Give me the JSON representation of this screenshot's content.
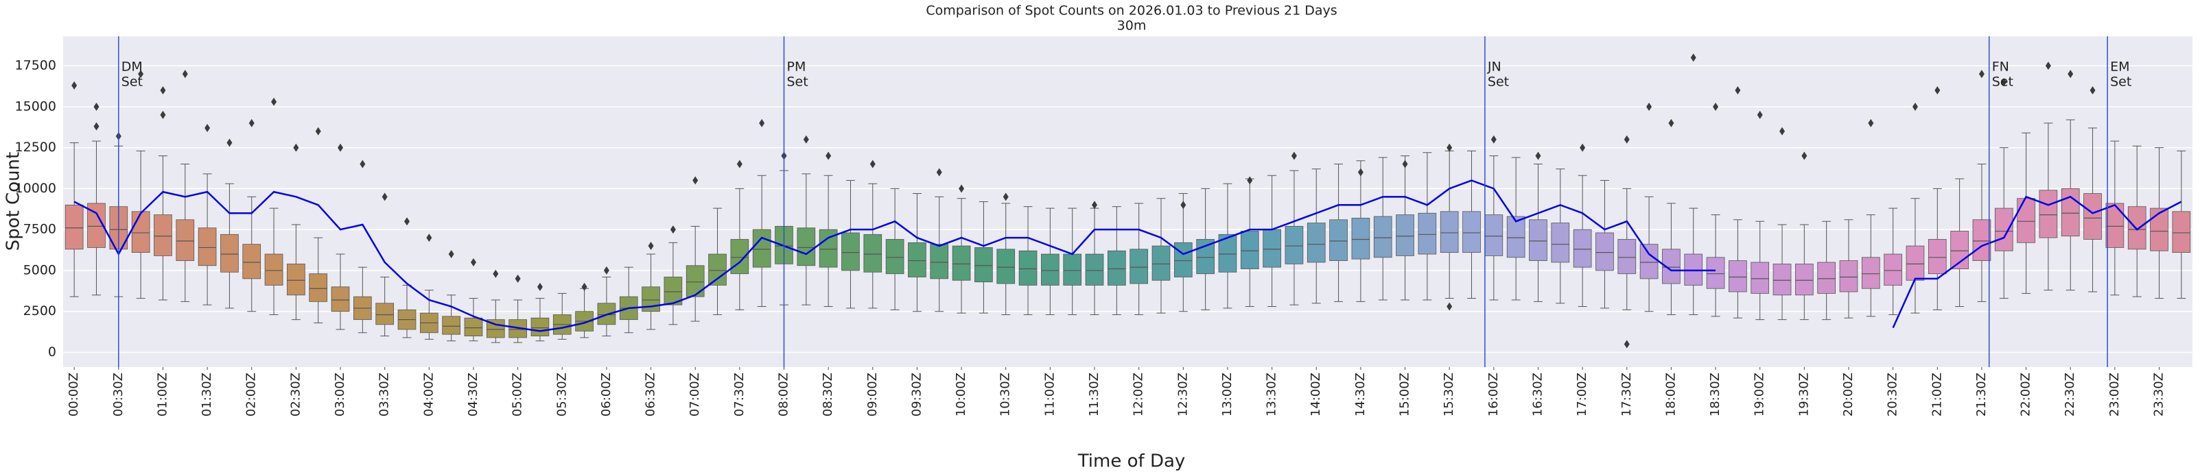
{
  "chart_data": {
    "type": "box",
    "title": "Comparison of Spot Counts on 2026.01.03 to Previous 21 Days",
    "subtitle": "30m",
    "xlabel": "Time of Day",
    "ylabel": "Spot Count",
    "xlim": [
      -7.5,
      1432.5
    ],
    "ylim": [
      -900,
      19300
    ],
    "yticks": [
      0,
      2500,
      5000,
      7500,
      10000,
      12500,
      15000,
      17500
    ],
    "xticks": [
      {
        "value": 0,
        "label": "00:00Z"
      },
      {
        "value": 30,
        "label": "00:30Z"
      },
      {
        "value": 60,
        "label": "01:00Z"
      },
      {
        "value": 90,
        "label": "01:30Z"
      },
      {
        "value": 120,
        "label": "02:00Z"
      },
      {
        "value": 150,
        "label": "02:30Z"
      },
      {
        "value": 180,
        "label": "03:00Z"
      },
      {
        "value": 210,
        "label": "03:30Z"
      },
      {
        "value": 240,
        "label": "04:00Z"
      },
      {
        "value": 270,
        "label": "04:30Z"
      },
      {
        "value": 300,
        "label": "05:00Z"
      },
      {
        "value": 330,
        "label": "05:30Z"
      },
      {
        "value": 360,
        "label": "06:00Z"
      },
      {
        "value": 390,
        "label": "06:30Z"
      },
      {
        "value": 420,
        "label": "07:00Z"
      },
      {
        "value": 450,
        "label": "07:30Z"
      },
      {
        "value": 480,
        "label": "08:00Z"
      },
      {
        "value": 510,
        "label": "08:30Z"
      },
      {
        "value": 540,
        "label": "09:00Z"
      },
      {
        "value": 570,
        "label": "09:30Z"
      },
      {
        "value": 600,
        "label": "10:00Z"
      },
      {
        "value": 630,
        "label": "10:30Z"
      },
      {
        "value": 660,
        "label": "11:00Z"
      },
      {
        "value": 690,
        "label": "11:30Z"
      },
      {
        "value": 720,
        "label": "12:00Z"
      },
      {
        "value": 750,
        "label": "12:30Z"
      },
      {
        "value": 780,
        "label": "13:00Z"
      },
      {
        "value": 810,
        "label": "13:30Z"
      },
      {
        "value": 840,
        "label": "14:00Z"
      },
      {
        "value": 870,
        "label": "14:30Z"
      },
      {
        "value": 900,
        "label": "15:00Z"
      },
      {
        "value": 930,
        "label": "15:30Z"
      },
      {
        "value": 960,
        "label": "16:00Z"
      },
      {
        "value": 990,
        "label": "16:30Z"
      },
      {
        "value": 1020,
        "label": "17:00Z"
      },
      {
        "value": 1050,
        "label": "17:30Z"
      },
      {
        "value": 1080,
        "label": "18:00Z"
      },
      {
        "value": 1110,
        "label": "18:30Z"
      },
      {
        "value": 1140,
        "label": "19:00Z"
      },
      {
        "value": 1170,
        "label": "19:30Z"
      },
      {
        "value": 1200,
        "label": "20:00Z"
      },
      {
        "value": 1230,
        "label": "20:30Z"
      },
      {
        "value": 1260,
        "label": "21:00Z"
      },
      {
        "value": 1290,
        "label": "21:30Z"
      },
      {
        "value": 1320,
        "label": "22:00Z"
      },
      {
        "value": 1350,
        "label": "22:30Z"
      },
      {
        "value": 1380,
        "label": "23:00Z"
      },
      {
        "value": 1410,
        "label": "23:30Z"
      }
    ],
    "grid": true,
    "palette": [
      "#d98a84",
      "#c2905a",
      "#9a9a48",
      "#6aa060",
      "#4e9d80",
      "#5a9eae",
      "#9aa6d6",
      "#c497d8",
      "#db8fc0",
      "#d98a98"
    ],
    "x": [
      0,
      15,
      30,
      45,
      60,
      75,
      90,
      105,
      120,
      135,
      150,
      165,
      180,
      195,
      210,
      225,
      240,
      255,
      270,
      285,
      300,
      315,
      330,
      345,
      360,
      375,
      390,
      405,
      420,
      435,
      450,
      465,
      480,
      495,
      510,
      525,
      540,
      555,
      570,
      585,
      600,
      615,
      630,
      645,
      660,
      675,
      690,
      705,
      720,
      735,
      750,
      765,
      780,
      795,
      810,
      825,
      840,
      855,
      870,
      885,
      900,
      915,
      930,
      945,
      960,
      975,
      990,
      1005,
      1020,
      1035,
      1050,
      1065,
      1080,
      1095,
      1110,
      1125,
      1140,
      1155,
      1170,
      1185,
      1200,
      1215,
      1230,
      1245,
      1260,
      1275,
      1290,
      1305,
      1320,
      1335,
      1350,
      1365,
      1380,
      1395,
      1410,
      1425
    ],
    "boxes": {
      "med": [
        7600,
        7700,
        7500,
        7300,
        7100,
        6800,
        6400,
        6000,
        5500,
        5000,
        4400,
        3900,
        3200,
        2700,
        2300,
        2000,
        1800,
        1600,
        1500,
        1400,
        1400,
        1500,
        1700,
        1900,
        2300,
        2700,
        3200,
        3700,
        4300,
        5000,
        5800,
        6300,
        6500,
        6400,
        6300,
        6100,
        6000,
        5800,
        5600,
        5500,
        5400,
        5300,
        5200,
        5100,
        5000,
        5000,
        5000,
        5100,
        5200,
        5400,
        5600,
        5800,
        6000,
        6200,
        6300,
        6500,
        6600,
        6800,
        6900,
        7000,
        7100,
        7200,
        7300,
        7300,
        7100,
        7000,
        6800,
        6600,
        6300,
        6100,
        5800,
        5500,
        5200,
        5000,
        4800,
        4600,
        4500,
        4400,
        4400,
        4500,
        4600,
        4800,
        5000,
        5400,
        5800,
        6200,
        6800,
        7400,
        8000,
        8400,
        8500,
        8200,
        7700,
        7500,
        7400,
        7300
      ],
      "q1": [
        6300,
        6400,
        6300,
        6100,
        5900,
        5600,
        5300,
        4900,
        4500,
        4100,
        3500,
        3100,
        2500,
        2000,
        1700,
        1400,
        1200,
        1100,
        1000,
        900,
        900,
        1000,
        1100,
        1300,
        1700,
        2000,
        2500,
        2900,
        3400,
        4100,
        4800,
        5200,
        5400,
        5300,
        5200,
        5000,
        4900,
        4800,
        4600,
        4500,
        4400,
        4300,
        4200,
        4100,
        4100,
        4100,
        4100,
        4100,
        4200,
        4400,
        4600,
        4800,
        4900,
        5100,
        5200,
        5400,
        5500,
        5600,
        5700,
        5800,
        5900,
        6000,
        6100,
        6100,
        5900,
        5800,
        5600,
        5500,
        5200,
        5000,
        4800,
        4500,
        4200,
        4100,
        3900,
        3700,
        3600,
        3500,
        3500,
        3600,
        3700,
        3900,
        4100,
        4400,
        4800,
        5100,
        5600,
        6200,
        6700,
        7000,
        7100,
        6900,
        6400,
        6300,
        6200,
        6100
      ],
      "q3": [
        9000,
        9100,
        8900,
        8600,
        8400,
        8100,
        7600,
        7200,
        6600,
        6000,
        5400,
        4800,
        4000,
        3400,
        3000,
        2600,
        2400,
        2200,
        2100,
        2000,
        2000,
        2100,
        2300,
        2500,
        3000,
        3400,
        4000,
        4600,
        5300,
        6000,
        6900,
        7500,
        7700,
        7600,
        7500,
        7300,
        7200,
        6900,
        6700,
        6600,
        6500,
        6400,
        6300,
        6200,
        6000,
        6000,
        6000,
        6200,
        6300,
        6500,
        6700,
        6900,
        7200,
        7400,
        7500,
        7700,
        7900,
        8100,
        8200,
        8300,
        8400,
        8500,
        8600,
        8600,
        8400,
        8300,
        8100,
        7900,
        7500,
        7300,
        6900,
        6600,
        6300,
        6000,
        5800,
        5600,
        5500,
        5400,
        5400,
        5500,
        5600,
        5800,
        6000,
        6500,
        6900,
        7400,
        8100,
        8800,
        9400,
        9900,
        10000,
        9700,
        9100,
        8900,
        8800,
        8600
      ],
      "whislo": [
        3400,
        3500,
        3400,
        3300,
        3200,
        3100,
        2900,
        2700,
        2500,
        2300,
        2000,
        1800,
        1400,
        1200,
        1000,
        900,
        800,
        700,
        700,
        600,
        600,
        700,
        800,
        900,
        1000,
        1200,
        1400,
        1700,
        1900,
        2300,
        2600,
        2800,
        2900,
        2900,
        2800,
        2700,
        2700,
        2600,
        2500,
        2500,
        2400,
        2400,
        2300,
        2300,
        2300,
        2300,
        2300,
        2300,
        2300,
        2400,
        2500,
        2600,
        2700,
        2800,
        2800,
        2900,
        3000,
        3100,
        3100,
        3200,
        3200,
        3200,
        3300,
        3300,
        3200,
        3200,
        3100,
        3000,
        2800,
        2700,
        2600,
        2500,
        2300,
        2300,
        2200,
        2100,
        2000,
        2000,
        2000,
        2000,
        2100,
        2200,
        2300,
        2400,
        2600,
        2800,
        3100,
        3300,
        3600,
        3800,
        3800,
        3700,
        3500,
        3400,
        3300,
        3300
      ],
      "whishi": [
        12800,
        12900,
        12600,
        12300,
        12000,
        11500,
        10900,
        10300,
        9500,
        8800,
        7800,
        7000,
        6000,
        5200,
        4600,
        4100,
        3800,
        3500,
        3300,
        3200,
        3200,
        3300,
        3600,
        3900,
        4600,
        5200,
        6000,
        6700,
        7700,
        8800,
        10000,
        10800,
        11100,
        10900,
        10800,
        10500,
        10300,
        10000,
        9700,
        9500,
        9400,
        9200,
        9100,
        8900,
        8800,
        8800,
        8800,
        8900,
        9100,
        9400,
        9700,
        10000,
        10300,
        10600,
        10800,
        11100,
        11200,
        11500,
        11700,
        11900,
        12000,
        12200,
        12300,
        12300,
        12000,
        11900,
        11500,
        11200,
        10800,
        10500,
        10000,
        9500,
        9100,
        8800,
        8400,
        8100,
        8000,
        7800,
        7800,
        8000,
        8100,
        8400,
        8800,
        9400,
        10000,
        10600,
        11500,
        12500,
        13400,
        14000,
        14200,
        13700,
        12900,
        12600,
        12500,
        12300
      ]
    },
    "outliers": [
      [
        0,
        16300
      ],
      [
        15,
        15000
      ],
      [
        15,
        13800
      ],
      [
        30,
        13200
      ],
      [
        45,
        17000
      ],
      [
        60,
        14500
      ],
      [
        60,
        16000
      ],
      [
        75,
        17000
      ],
      [
        90,
        13700
      ],
      [
        105,
        12800
      ],
      [
        120,
        14000
      ],
      [
        135,
        15300
      ],
      [
        150,
        12500
      ],
      [
        165,
        13500
      ],
      [
        180,
        12500
      ],
      [
        195,
        11500
      ],
      [
        210,
        9500
      ],
      [
        225,
        8000
      ],
      [
        240,
        7000
      ],
      [
        255,
        6000
      ],
      [
        270,
        5500
      ],
      [
        285,
        4800
      ],
      [
        300,
        4500
      ],
      [
        315,
        4000
      ],
      [
        345,
        4000
      ],
      [
        360,
        5000
      ],
      [
        390,
        6500
      ],
      [
        405,
        7500
      ],
      [
        420,
        10500
      ],
      [
        450,
        11500
      ],
      [
        465,
        14000
      ],
      [
        480,
        12000
      ],
      [
        495,
        13000
      ],
      [
        510,
        12000
      ],
      [
        540,
        11500
      ],
      [
        585,
        11000
      ],
      [
        600,
        10000
      ],
      [
        630,
        9500
      ],
      [
        690,
        9000
      ],
      [
        750,
        9000
      ],
      [
        795,
        10500
      ],
      [
        825,
        12000
      ],
      [
        870,
        11000
      ],
      [
        900,
        11500
      ],
      [
        930,
        12500
      ],
      [
        960,
        13000
      ],
      [
        990,
        12000
      ],
      [
        1020,
        12500
      ],
      [
        1050,
        13000
      ],
      [
        1065,
        15000
      ],
      [
        1080,
        14000
      ],
      [
        1095,
        18000
      ],
      [
        1110,
        15000
      ],
      [
        1125,
        16000
      ],
      [
        1140,
        14500
      ],
      [
        1155,
        13500
      ],
      [
        1170,
        12000
      ],
      [
        1215,
        14000
      ],
      [
        1245,
        15000
      ],
      [
        1260,
        16000
      ],
      [
        1290,
        17000
      ],
      [
        1305,
        16500
      ],
      [
        1335,
        17500
      ],
      [
        1350,
        17000
      ],
      [
        1365,
        16000
      ],
      [
        1050,
        500
      ],
      [
        930,
        2800
      ]
    ],
    "outlier_color": "#3c3c3c",
    "series": [
      {
        "color": "#0000ee",
        "values": [
          9200,
          8500,
          6000,
          8500,
          9800,
          9500,
          9800,
          8500,
          8500,
          9800,
          9500,
          9000,
          7500,
          7800,
          5500,
          4200,
          3200,
          2800,
          2200,
          1700,
          1500,
          1300,
          1500,
          1800,
          2300,
          2700,
          2800,
          3000,
          3500,
          4500,
          5500,
          7000,
          6500,
          6000,
          7000,
          7500,
          7500,
          8000,
          7000,
          6500,
          7000,
          6500,
          7000,
          7000,
          6500,
          6000,
          7500,
          7500,
          7500,
          7000,
          6000,
          6500,
          7000,
          7500,
          7500,
          8000,
          8500,
          9000,
          9000,
          9500,
          9500,
          9000,
          10000,
          10500,
          10000,
          8000,
          8500,
          9000,
          8500,
          7500,
          8000,
          6000,
          5000,
          5000,
          5000,
          null,
          null,
          null,
          null,
          null,
          null,
          null,
          1500,
          4500,
          4500,
          5500,
          6500,
          7000,
          9500,
          9000,
          9500,
          8500,
          9000,
          7500,
          8500,
          9200
        ]
      }
    ],
    "vlines": [
      {
        "x": 30,
        "text": [
          "DM",
          "Set"
        ]
      },
      {
        "x": 480,
        "text": [
          "PM",
          "Set"
        ]
      },
      {
        "x": 954,
        "text": [
          "JN",
          "Set"
        ]
      },
      {
        "x": 1295,
        "text": [
          "FN",
          "Set"
        ]
      },
      {
        "x": 1375,
        "text": [
          "EM",
          "Set"
        ]
      }
    ],
    "vline_color": "#3050c8"
  }
}
